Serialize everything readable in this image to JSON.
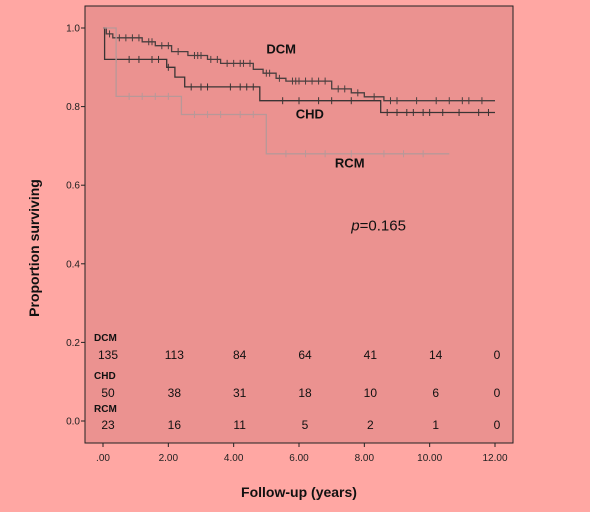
{
  "chart_data": {
    "type": "line",
    "xlabel": "Follow-up (years)",
    "ylabel": "Proportion surviving",
    "xlim": [
      0,
      12
    ],
    "ylim": [
      0,
      1.0
    ],
    "x_ticks": [
      ".00",
      "2.00",
      "4.00",
      "6.00",
      "8.00",
      "10.00",
      "12.00"
    ],
    "y_ticks": [
      "0.0",
      "0.2",
      "0.4",
      "0.6",
      "0.8",
      "1.0"
    ],
    "grid": false,
    "annotation": {
      "prefix": "p",
      "text": "=0.165",
      "x": 7.6,
      "y": 0.485
    },
    "colors": {
      "background": "#ffa7a3",
      "plot_area": "#eb9290",
      "DCM": "#4a3f3f",
      "CHD": "#3a3434",
      "RCM": "#b89898"
    },
    "series": [
      {
        "name": "DCM",
        "label_pos": [
          5.0,
          0.935
        ],
        "steps": [
          [
            0,
            1.0
          ],
          [
            0.1,
            0.985
          ],
          [
            0.3,
            0.975
          ],
          [
            1.2,
            0.965
          ],
          [
            1.6,
            0.955
          ],
          [
            2.1,
            0.94
          ],
          [
            2.6,
            0.93
          ],
          [
            3.2,
            0.92
          ],
          [
            3.6,
            0.91
          ],
          [
            4.6,
            0.895
          ],
          [
            4.9,
            0.885
          ],
          [
            5.3,
            0.872
          ],
          [
            5.6,
            0.865
          ],
          [
            7.0,
            0.845
          ],
          [
            7.6,
            0.835
          ],
          [
            8.0,
            0.825
          ],
          [
            8.6,
            0.815
          ],
          [
            12.0,
            0.815
          ]
        ],
        "censor_x": [
          0.2,
          0.5,
          0.7,
          0.9,
          1.1,
          1.4,
          1.5,
          1.8,
          2.0,
          2.3,
          2.8,
          2.9,
          3.0,
          3.3,
          3.5,
          3.8,
          4.0,
          4.2,
          4.3,
          4.5,
          5.0,
          5.1,
          5.4,
          5.8,
          5.9,
          6.0,
          6.2,
          6.4,
          6.6,
          6.8,
          7.2,
          7.4,
          7.8,
          8.3,
          8.8,
          9.0,
          9.6,
          10.2,
          10.6,
          11.0,
          11.2,
          11.6
        ]
      },
      {
        "name": "CHD",
        "label_pos": [
          5.9,
          0.77
        ],
        "steps": [
          [
            0,
            1.0
          ],
          [
            0.05,
            0.92
          ],
          [
            1.95,
            0.9
          ],
          [
            2.2,
            0.875
          ],
          [
            2.5,
            0.85
          ],
          [
            4.8,
            0.815
          ],
          [
            8.0,
            0.815
          ],
          [
            8.5,
            0.785
          ],
          [
            12.0,
            0.785
          ]
        ],
        "censor_x": [
          0.4,
          0.8,
          1.1,
          1.5,
          1.7,
          2.0,
          2.7,
          3.0,
          3.2,
          3.9,
          4.2,
          4.4,
          4.6,
          5.5,
          6.0,
          6.6,
          7.0,
          7.6,
          8.7,
          9.0,
          9.3,
          9.5,
          9.8,
          10.0,
          10.4,
          10.9,
          11.5,
          11.8
        ]
      },
      {
        "name": "RCM",
        "label_pos": [
          7.1,
          0.645
        ],
        "steps": [
          [
            0,
            1.0
          ],
          [
            0.4,
            0.826
          ],
          [
            2.4,
            0.78
          ],
          [
            5.0,
            0.68
          ],
          [
            10.6,
            0.68
          ]
        ],
        "censor_x": [
          0.8,
          1.2,
          1.6,
          2.0,
          2.8,
          3.2,
          3.6,
          4.2,
          4.6,
          5.6,
          6.2,
          6.8,
          7.6,
          8.6,
          9.2,
          9.8
        ]
      }
    ],
    "risk_table": {
      "times": [
        0,
        2,
        4,
        6,
        8,
        10,
        12
      ],
      "rows": [
        {
          "label": "DCM",
          "counts": [
            "135",
            "113",
            "84",
            "64",
            "41",
            "14",
            "0"
          ]
        },
        {
          "label": "CHD",
          "counts": [
            "50",
            "38",
            "31",
            "18",
            "10",
            "6",
            "0"
          ]
        },
        {
          "label": "RCM",
          "counts": [
            "23",
            "16",
            "11",
            "5",
            "2",
            "1",
            "0"
          ]
        }
      ]
    }
  }
}
